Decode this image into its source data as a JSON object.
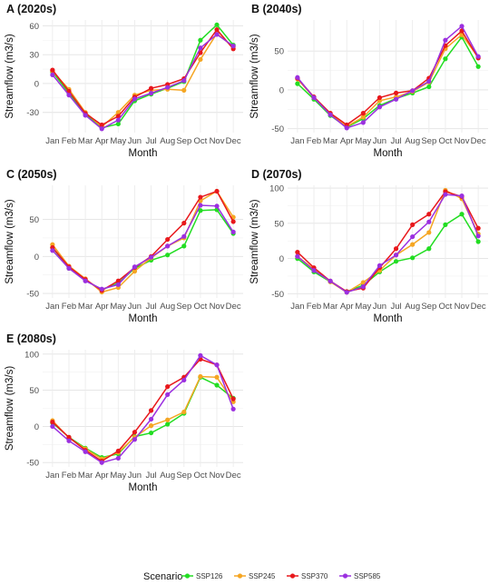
{
  "legend": {
    "title": "Scenario",
    "entries": [
      {
        "name": "SSP126",
        "color": "#22dd22"
      },
      {
        "name": "SSP245",
        "color": "#f5a623"
      },
      {
        "name": "SSP370",
        "color": "#e8181c"
      },
      {
        "name": "SSP585",
        "color": "#9b30e0"
      }
    ]
  },
  "chart_data": [
    {
      "type": "line",
      "title": "A (2020s)",
      "xlabel": "Month",
      "ylabel": "Streamflow (m3/s)",
      "categories": [
        "Jan",
        "Feb",
        "Mar",
        "Apr",
        "May",
        "Jun",
        "Jul",
        "Aug",
        "Sep",
        "Oct",
        "Nov",
        "Dec"
      ],
      "yticks": [
        -30,
        0,
        30,
        60
      ],
      "ylim": [
        -51,
        66
      ],
      "grid": true,
      "series": [
        {
          "name": "SSP126",
          "values": [
            12,
            -10,
            -32,
            -46,
            -42,
            -18,
            -11,
            -5,
            2,
            45,
            61,
            40
          ]
        },
        {
          "name": "SSP245",
          "values": [
            13,
            -6,
            -30,
            -45,
            -30,
            -12,
            -7,
            -6,
            -7,
            25,
            52,
            38
          ]
        },
        {
          "name": "SSP370",
          "values": [
            14,
            -8,
            -31,
            -43,
            -34,
            -14,
            -5,
            -1,
            5,
            32,
            56,
            36
          ]
        },
        {
          "name": "SSP585",
          "values": [
            9,
            -12,
            -33,
            -47,
            -38,
            -16,
            -10,
            -4,
            3,
            37,
            51,
            39
          ]
        }
      ]
    },
    {
      "type": "line",
      "title": "B (2040s)",
      "xlabel": "Month",
      "ylabel": "Streamflow (m3/s)",
      "categories": [
        "Jan",
        "Feb",
        "Mar",
        "Apr",
        "May",
        "Jun",
        "Jul",
        "Aug",
        "Sep",
        "Oct",
        "Nov",
        "Dec"
      ],
      "yticks": [
        -50,
        0,
        50
      ],
      "ylim": [
        -55,
        90
      ],
      "grid": true,
      "series": [
        {
          "name": "SSP126",
          "values": [
            8,
            -12,
            -33,
            -48,
            -37,
            -20,
            -11,
            -4,
            4,
            40,
            68,
            30
          ]
        },
        {
          "name": "SSP245",
          "values": [
            14,
            -10,
            -31,
            -47,
            -35,
            -14,
            -9,
            -2,
            10,
            53,
            71,
            42
          ]
        },
        {
          "name": "SSP370",
          "values": [
            15,
            -9,
            -30,
            -45,
            -30,
            -10,
            -4,
            -1,
            15,
            57,
            76,
            41
          ]
        },
        {
          "name": "SSP585",
          "values": [
            16,
            -10,
            -32,
            -49,
            -42,
            -22,
            -12,
            -1,
            11,
            64,
            82,
            43
          ]
        }
      ]
    },
    {
      "type": "line",
      "title": "C (2050s)",
      "xlabel": "Month",
      "ylabel": "Streamflow (m3/s)",
      "categories": [
        "Jan",
        "Feb",
        "Mar",
        "Apr",
        "May",
        "Jun",
        "Jul",
        "Aug",
        "Sep",
        "Oct",
        "Nov",
        "Dec"
      ],
      "yticks": [
        -50,
        0,
        50
      ],
      "ylim": [
        -56,
        96
      ],
      "grid": true,
      "series": [
        {
          "name": "SSP126",
          "values": [
            12,
            -16,
            -32,
            -45,
            -36,
            -16,
            -5,
            2,
            14,
            62,
            63,
            31
          ]
        },
        {
          "name": "SSP245",
          "values": [
            16,
            -13,
            -30,
            -48,
            -42,
            -20,
            -2,
            14,
            25,
            75,
            88,
            53
          ]
        },
        {
          "name": "SSP370",
          "values": [
            12,
            -14,
            -31,
            -46,
            -33,
            -15,
            0,
            23,
            45,
            80,
            88,
            47
          ]
        },
        {
          "name": "SSP585",
          "values": [
            8,
            -16,
            -33,
            -44,
            -38,
            -14,
            -1,
            14,
            27,
            69,
            68,
            33
          ]
        }
      ]
    },
    {
      "type": "line",
      "title": "D (2070s)",
      "xlabel": "Month",
      "ylabel": "Streamflow (m3/s)",
      "categories": [
        "Jan",
        "Feb",
        "Mar",
        "Apr",
        "May",
        "Jun",
        "Jul",
        "Aug",
        "Sep",
        "Oct",
        "Nov",
        "Dec"
      ],
      "yticks": [
        -50,
        0,
        50,
        100
      ],
      "ylim": [
        -56,
        104
      ],
      "grid": true,
      "series": [
        {
          "name": "SSP126",
          "values": [
            0,
            -19,
            -33,
            -47,
            -38,
            -19,
            -4,
            1,
            14,
            48,
            63,
            24
          ]
        },
        {
          "name": "SSP245",
          "values": [
            3,
            -15,
            -33,
            -48,
            -34,
            -17,
            5,
            20,
            37,
            97,
            85,
            35
          ]
        },
        {
          "name": "SSP370",
          "values": [
            9,
            -13,
            -32,
            -47,
            -42,
            -13,
            14,
            48,
            63,
            95,
            88,
            43
          ]
        },
        {
          "name": "SSP585",
          "values": [
            3,
            -17,
            -32,
            -48,
            -40,
            -10,
            5,
            31,
            52,
            91,
            89,
            32
          ]
        }
      ]
    },
    {
      "type": "line",
      "title": "E (2080s)",
      "xlabel": "Month",
      "ylabel": "Streamflow (m3/s)",
      "categories": [
        "Jan",
        "Feb",
        "Mar",
        "Apr",
        "May",
        "Jun",
        "Jul",
        "Aug",
        "Sep",
        "Oct",
        "Nov",
        "Dec"
      ],
      "yticks": [
        -50,
        0,
        50,
        100
      ],
      "ylim": [
        -56,
        106
      ],
      "grid": true,
      "series": [
        {
          "name": "SSP126",
          "values": [
            5,
            -15,
            -30,
            -43,
            -38,
            -14,
            -9,
            3,
            18,
            68,
            57,
            39
          ]
        },
        {
          "name": "SSP245",
          "values": [
            8,
            -16,
            -31,
            -45,
            -36,
            -15,
            1,
            9,
            20,
            69,
            68,
            34
          ]
        },
        {
          "name": "SSP370",
          "values": [
            6,
            -15,
            -33,
            -48,
            -34,
            -8,
            22,
            55,
            68,
            93,
            85,
            38
          ]
        },
        {
          "name": "SSP585",
          "values": [
            0,
            -20,
            -35,
            -50,
            -44,
            -18,
            10,
            44,
            64,
            98,
            85,
            24
          ]
        }
      ]
    }
  ]
}
